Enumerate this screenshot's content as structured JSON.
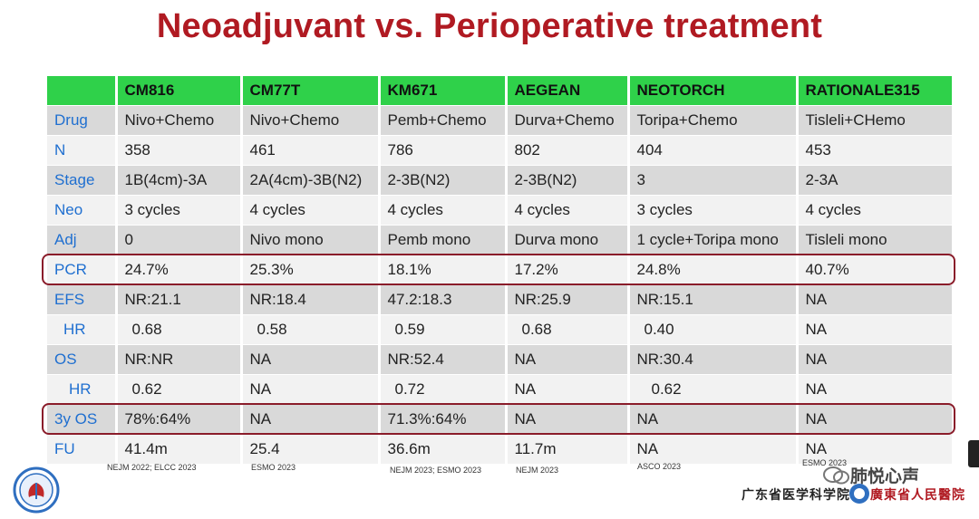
{
  "title": "Neoadjuvant vs. Perioperative treatment",
  "header": [
    "",
    "CM816",
    "CM77T",
    "KM671",
    "AEGEAN",
    "NEOTORCH",
    "RATIONALE315"
  ],
  "rows": [
    {
      "label": "Drug",
      "cells": [
        "Nivo+Chemo",
        "Nivo+Chemo",
        "Pemb+Chemo",
        "Durva+Chemo",
        "Toripa+Chemo",
        "Tisleli+CHemo"
      ]
    },
    {
      "label": "N",
      "cells": [
        "358",
        "461",
        "786",
        "802",
        "404",
        "453"
      ]
    },
    {
      "label": "Stage",
      "cells": [
        "1B(4cm)-3A",
        "2A(4cm)-3B(N2)",
        "2-3B(N2)",
        "2-3B(N2)",
        "3",
        "2-3A"
      ]
    },
    {
      "label": "Neo",
      "cells": [
        "3 cycles",
        "4 cycles",
        "4 cycles",
        "4 cycles",
        "3 cycles",
        "4 cycles"
      ]
    },
    {
      "label": "Adj",
      "cells": [
        "0",
        "Nivo mono",
        "Pemb mono",
        "Durva mono",
        "1 cycle+Toripa mono",
        "Tisleli mono"
      ]
    },
    {
      "label": "PCR",
      "cells": [
        "24.7%",
        "25.3%",
        "18.1%",
        "17.2%",
        "24.8%",
        "40.7%"
      ]
    },
    {
      "label": "EFS",
      "cells": [
        "NR:21.1",
        "NR:18.4",
        "47.2:18.3",
        "NR:25.9",
        "NR:15.1",
        "NA"
      ]
    },
    {
      "label": "HR",
      "cells": [
        "0.68",
        "0.58",
        "0.59",
        "0.68",
        "0.40",
        "NA"
      ]
    },
    {
      "label": "OS",
      "cells": [
        "NR:NR",
        "NA",
        "NR:52.4",
        "NA",
        "NR:30.4",
        "NA"
      ]
    },
    {
      "label": "HR",
      "cells": [
        "0.62",
        "NA",
        "0.72",
        "NA",
        "0.62",
        "NA"
      ]
    },
    {
      "label": "3y OS",
      "cells": [
        "78%:64%",
        "NA",
        "71.3%:64%",
        "NA",
        "NA",
        "NA"
      ]
    },
    {
      "label": "FU",
      "cells": [
        "41.4m",
        "25.4",
        "36.6m",
        "11.7m",
        "NA",
        "NA"
      ]
    }
  ],
  "references": [
    "NEJM 2022; ELCC 2023",
    "ESMO 2023",
    "NEJM 2023; ESMO 2023",
    "NEJM 2023",
    "ASCO 2023",
    "ESMO 2023"
  ],
  "footer": {
    "wechat_name": "肺悦心声",
    "academy": "广东省医学科学院",
    "hospital": "廣東省人民醫院"
  },
  "colors": {
    "title": "#b01a22",
    "header_bg": "#2fd14a",
    "row_label": "#1f6fd0",
    "highlight_border": "#8a1c2a"
  }
}
